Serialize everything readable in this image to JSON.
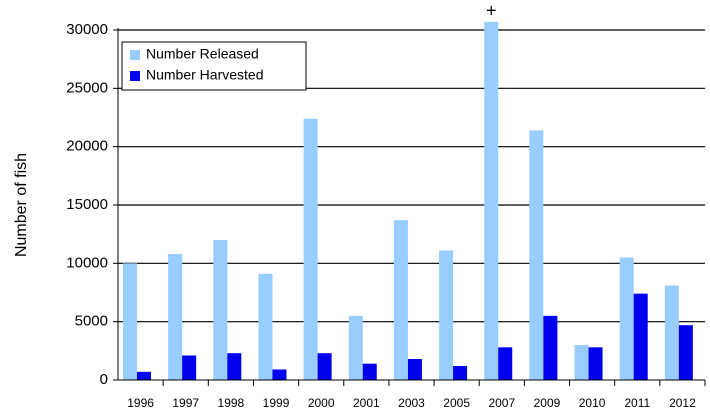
{
  "chart_data": {
    "type": "bar",
    "y_axis_label": "Number of fish",
    "categories": [
      "1996",
      "1997",
      "1998",
      "1999",
      "2000",
      "2001",
      "2003",
      "2005",
      "2007",
      "2009",
      "2010",
      "2011",
      "2012"
    ],
    "series": [
      {
        "name": "Number Released",
        "color": "#99ccff",
        "values": [
          10000,
          10800,
          12000,
          9100,
          22400,
          5500,
          13700,
          11100,
          30700,
          21400,
          3000,
          10500,
          8100
        ]
      },
      {
        "name": "Number Harvested",
        "color": "#0000ee",
        "values": [
          700,
          2100,
          2300,
          900,
          2300,
          1400,
          1800,
          1200,
          2800,
          5500,
          2800,
          7400,
          4700
        ]
      }
    ],
    "annotations": [
      {
        "text": "+",
        "category": "2007"
      }
    ],
    "ylim": [
      0,
      30000
    ],
    "yticks": [
      0,
      5000,
      10000,
      15000,
      20000,
      25000,
      30000
    ],
    "grid": true,
    "legend": "upper left"
  }
}
